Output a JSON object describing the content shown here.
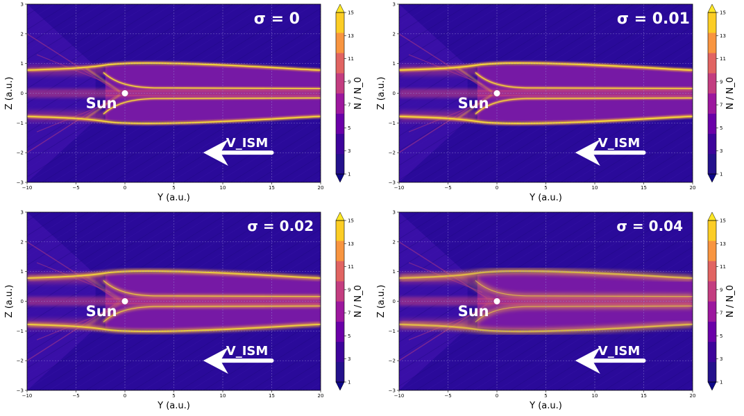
{
  "chart_data": [
    {
      "type": "heatmap",
      "title": "σ = 0",
      "sigma": 0,
      "xlabel": "Y (a.u.)",
      "ylabel": "Z (a.u.)",
      "xlim": [
        -10,
        20
      ],
      "ylim": [
        -3,
        3
      ],
      "xticks": [
        "−10",
        "−5",
        "0",
        "5",
        "10",
        "15",
        "20"
      ],
      "yticks": [
        "3",
        "2",
        "1",
        "0",
        "−1",
        "−2",
        "−3"
      ],
      "sun_label": "Sun",
      "sun_position": [
        0,
        0
      ],
      "arrow_label": "V_ISM",
      "arrow_from": [
        15,
        -2
      ],
      "arrow_to": [
        8,
        -2
      ],
      "colorbar": {
        "label": "N / N_0",
        "ticks": [
          "1",
          "3",
          "5",
          "7",
          "9",
          "11",
          "13",
          "15"
        ],
        "min": 1,
        "max": 15
      }
    },
    {
      "type": "heatmap",
      "title": "σ = 0.01",
      "sigma": 0.01,
      "xlabel": "Y (a.u.)",
      "ylabel": "Z (a.u.)",
      "xlim": [
        -10,
        20
      ],
      "ylim": [
        -3,
        3
      ],
      "xticks": [
        "−10",
        "−5",
        "0",
        "5",
        "10",
        "15",
        "20"
      ],
      "yticks": [
        "3",
        "2",
        "1",
        "0",
        "−1",
        "−2",
        "−3"
      ],
      "sun_label": "Sun",
      "sun_position": [
        0,
        0
      ],
      "arrow_label": "V_ISM",
      "arrow_from": [
        15,
        -2
      ],
      "arrow_to": [
        8,
        -2
      ],
      "colorbar": {
        "label": "N / N_0",
        "ticks": [
          "1",
          "3",
          "5",
          "7",
          "9",
          "11",
          "13",
          "15"
        ],
        "min": 1,
        "max": 15
      }
    },
    {
      "type": "heatmap",
      "title": "σ = 0.02",
      "sigma": 0.02,
      "xlabel": "Y (a.u.)",
      "ylabel": "Z (a.u.)",
      "xlim": [
        -10,
        20
      ],
      "ylim": [
        -3,
        3
      ],
      "xticks": [
        "−10",
        "−5",
        "0",
        "5",
        "10",
        "15",
        "20"
      ],
      "yticks": [
        "3",
        "2",
        "1",
        "0",
        "−1",
        "−2",
        "−3"
      ],
      "sun_label": "Sun",
      "sun_position": [
        0,
        0
      ],
      "arrow_label": "V_ISM",
      "arrow_from": [
        15,
        -2
      ],
      "arrow_to": [
        8,
        -2
      ],
      "colorbar": {
        "label": "N / N_0",
        "ticks": [
          "1",
          "3",
          "5",
          "7",
          "9",
          "11",
          "13",
          "15"
        ],
        "min": 1,
        "max": 15
      }
    },
    {
      "type": "heatmap",
      "title": "σ = 0.04",
      "sigma": 0.04,
      "xlabel": "Y (a.u.)",
      "ylabel": "Z (a.u.)",
      "xlim": [
        -10,
        20
      ],
      "ylim": [
        -3,
        3
      ],
      "xticks": [
        "−10",
        "−5",
        "0",
        "5",
        "10",
        "15",
        "20"
      ],
      "yticks": [
        "3",
        "2",
        "1",
        "0",
        "−1",
        "−2",
        "−3"
      ],
      "sun_label": "Sun",
      "sun_position": [
        0,
        0
      ],
      "arrow_label": "V_ISM",
      "arrow_from": [
        15,
        -2
      ],
      "arrow_to": [
        8,
        -2
      ],
      "colorbar": {
        "label": "N / N_0",
        "ticks": [
          "1",
          "3",
          "5",
          "7",
          "9",
          "11",
          "13",
          "15"
        ],
        "min": 1,
        "max": 15
      }
    }
  ],
  "colors": {
    "background": "#2a0a9a",
    "cone": "#3b0fa8",
    "streak": "#1c0680",
    "wing": "#7a1aa5",
    "band": "#c8437c",
    "bright": "#f4a93c",
    "peak": "#f7e43a",
    "grid": "#9b8fd8",
    "colorbar": [
      "#24118c",
      "#3d049b",
      "#6a00a8",
      "#9c179e",
      "#c33d80",
      "#e16462",
      "#f89540",
      "#fccd25"
    ]
  }
}
